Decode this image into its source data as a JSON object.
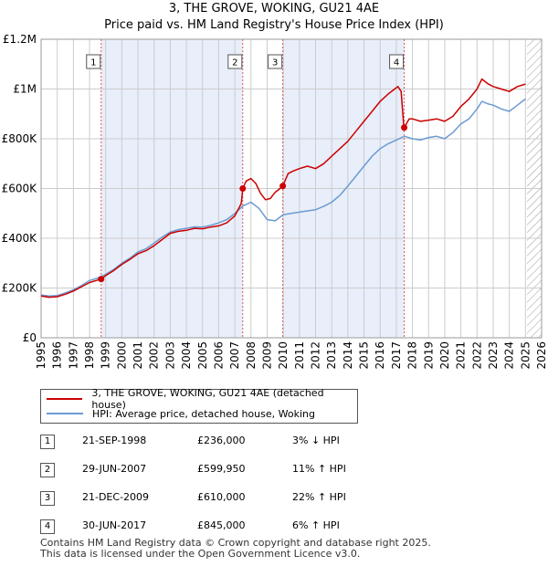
{
  "title_line1": "3, THE GROVE, WOKING, GU21 4AE",
  "title_line2": "Price paid vs. HM Land Registry's House Price Index (HPI)",
  "colors": {
    "property": "#cc0000",
    "hpi": "#6b9bd2",
    "marker_line": "#e05555",
    "future_hatch": "#999999",
    "grid": "#cccccc",
    "highlight": "#e8eefa"
  },
  "chart_data": {
    "type": "line",
    "title": "Price paid vs. HM Land Registry's House Price Index (HPI)",
    "xlim": [
      1995,
      2026
    ],
    "ylim": [
      0,
      1200000
    ],
    "y_ticks": [
      0,
      200000,
      400000,
      600000,
      800000,
      1000000,
      1200000
    ],
    "y_tick_labels": [
      "£0",
      "£200K",
      "£400K",
      "£600K",
      "£800K",
      "£1M",
      "£1.2M"
    ],
    "x_ticks": [
      1995,
      1996,
      1997,
      1998,
      1999,
      2000,
      2001,
      2002,
      2003,
      2004,
      2005,
      2006,
      2007,
      2008,
      2009,
      2010,
      2011,
      2012,
      2013,
      2014,
      2015,
      2016,
      2017,
      2018,
      2019,
      2020,
      2021,
      2022,
      2023,
      2024,
      2025,
      2026
    ],
    "x_tick_labels": [
      "1995",
      "1996",
      "1997",
      "1998",
      "1999",
      "2000",
      "2001",
      "2002",
      "2003",
      "2004",
      "2005",
      "2006",
      "2007",
      "2008",
      "2009",
      "2010",
      "2011",
      "2012",
      "2013",
      "2014",
      "2015",
      "2016",
      "2017",
      "2018",
      "2019",
      "2020",
      "2021",
      "2022",
      "2023",
      "2024",
      "2025",
      "2026"
    ],
    "future_start": 2025.1,
    "series": [
      {
        "name": "3, THE GROVE, WOKING, GU21 4AE (detached house)",
        "x": [
          1995.0,
          1995.5,
          1996.0,
          1996.5,
          1997.0,
          1997.5,
          1998.0,
          1998.5,
          1998.72,
          1999.0,
          1999.5,
          2000.0,
          2000.5,
          2001.0,
          2001.5,
          2002.0,
          2002.5,
          2003.0,
          2003.5,
          2004.0,
          2004.5,
          2005.0,
          2005.5,
          2006.0,
          2006.5,
          2007.0,
          2007.4,
          2007.49,
          2007.7,
          2008.0,
          2008.3,
          2008.6,
          2008.9,
          2009.2,
          2009.5,
          2009.8,
          2009.97,
          2010.3,
          2010.6,
          2011.0,
          2011.5,
          2012.0,
          2012.5,
          2013.0,
          2013.5,
          2014.0,
          2014.5,
          2015.0,
          2015.5,
          2016.0,
          2016.5,
          2016.9,
          2017.1,
          2017.3,
          2017.45,
          2017.49,
          2017.8,
          2018.0,
          2018.5,
          2019.0,
          2019.5,
          2020.0,
          2020.5,
          2021.0,
          2021.5,
          2022.0,
          2022.3,
          2022.7,
          2023.0,
          2023.5,
          2024.0,
          2024.5,
          2025.0
        ],
        "values": [
          168000,
          163000,
          165000,
          175000,
          188000,
          205000,
          222000,
          232000,
          236000,
          250000,
          270000,
          295000,
          315000,
          338000,
          350000,
          370000,
          395000,
          420000,
          428000,
          432000,
          440000,
          438000,
          445000,
          450000,
          462000,
          490000,
          540000,
          599950,
          630000,
          640000,
          620000,
          580000,
          555000,
          560000,
          585000,
          600000,
          610000,
          660000,
          670000,
          680000,
          690000,
          680000,
          700000,
          730000,
          760000,
          790000,
          830000,
          870000,
          910000,
          950000,
          980000,
          1000000,
          1010000,
          990000,
          860000,
          845000,
          880000,
          880000,
          870000,
          875000,
          880000,
          870000,
          890000,
          930000,
          960000,
          1000000,
          1040000,
          1020000,
          1010000,
          1000000,
          990000,
          1010000,
          1020000
        ]
      },
      {
        "name": "HPI: Average price, detached house, Woking",
        "x": [
          1995.0,
          1995.5,
          1996.0,
          1996.5,
          1997.0,
          1997.5,
          1998.0,
          1998.5,
          1999.0,
          1999.5,
          2000.0,
          2000.5,
          2001.0,
          2001.5,
          2002.0,
          2002.5,
          2003.0,
          2003.5,
          2004.0,
          2004.5,
          2005.0,
          2005.5,
          2006.0,
          2006.5,
          2007.0,
          2007.5,
          2008.0,
          2008.5,
          2009.0,
          2009.5,
          2010.0,
          2010.5,
          2011.0,
          2011.5,
          2012.0,
          2012.5,
          2013.0,
          2013.5,
          2014.0,
          2014.5,
          2015.0,
          2015.5,
          2016.0,
          2016.5,
          2017.0,
          2017.5,
          2018.0,
          2018.5,
          2019.0,
          2019.5,
          2020.0,
          2020.5,
          2021.0,
          2021.5,
          2022.0,
          2022.3,
          2022.7,
          2023.0,
          2023.5,
          2024.0,
          2024.5,
          2025.0
        ],
        "values": [
          172000,
          168000,
          170000,
          180000,
          193000,
          210000,
          230000,
          240000,
          255000,
          275000,
          300000,
          320000,
          345000,
          358000,
          380000,
          405000,
          425000,
          435000,
          440000,
          446000,
          445000,
          452000,
          462000,
          475000,
          500000,
          530000,
          545000,
          520000,
          475000,
          470000,
          495000,
          500000,
          505000,
          510000,
          515000,
          528000,
          545000,
          572000,
          610000,
          650000,
          690000,
          730000,
          760000,
          780000,
          795000,
          810000,
          800000,
          795000,
          805000,
          810000,
          800000,
          825000,
          860000,
          880000,
          920000,
          950000,
          940000,
          935000,
          920000,
          910000,
          935000,
          960000
        ]
      }
    ],
    "transactions": [
      {
        "label": "1",
        "x": 1998.72,
        "value": 236000
      },
      {
        "label": "2",
        "x": 2007.49,
        "value": 599950
      },
      {
        "label": "3",
        "x": 2009.97,
        "value": 610000
      },
      {
        "label": "4",
        "x": 2017.49,
        "value": 845000
      }
    ]
  },
  "legend": {
    "property_label": "3, THE GROVE, WOKING, GU21 4AE (detached house)",
    "hpi_label": "HPI: Average price, detached house, Woking"
  },
  "transactions_table": [
    {
      "num": "1",
      "date": "21-SEP-1998",
      "price": "£236,000",
      "hpi": "3% ↓ HPI"
    },
    {
      "num": "2",
      "date": "29-JUN-2007",
      "price": "£599,950",
      "hpi": "11% ↑ HPI"
    },
    {
      "num": "3",
      "date": "21-DEC-2009",
      "price": "£610,000",
      "hpi": "22% ↑ HPI"
    },
    {
      "num": "4",
      "date": "30-JUN-2017",
      "price": "£845,000",
      "hpi": "6% ↑ HPI"
    }
  ],
  "footer": {
    "line1": "Contains HM Land Registry data © Crown copyright and database right 2025.",
    "line2": "This data is licensed under the Open Government Licence v3.0."
  }
}
